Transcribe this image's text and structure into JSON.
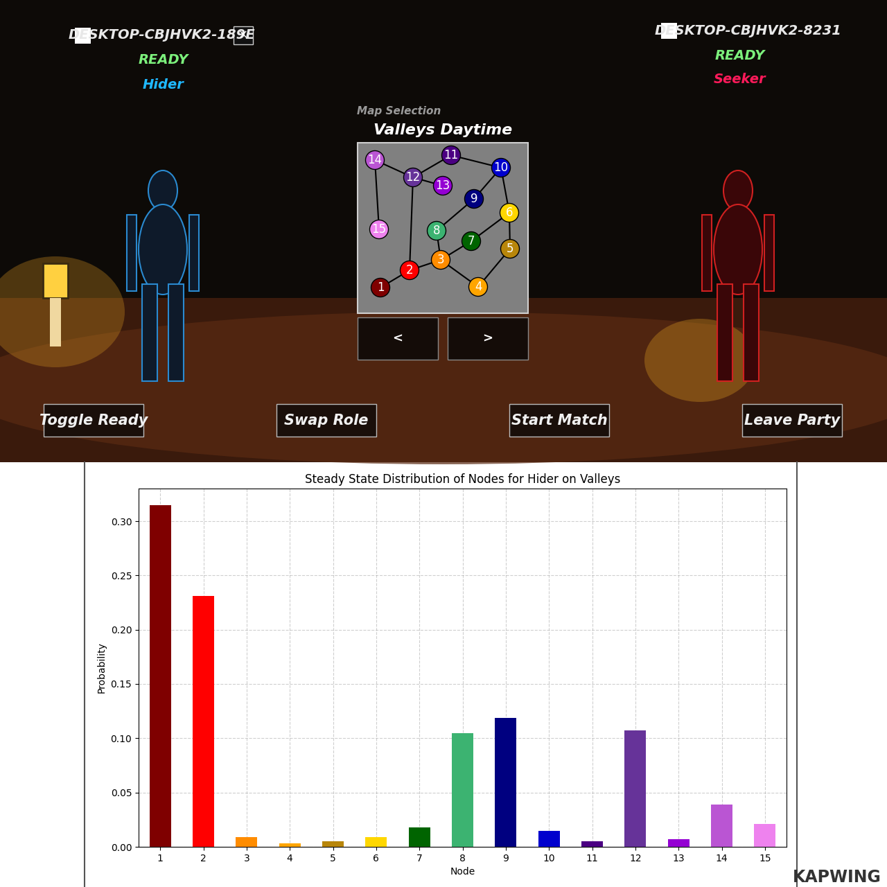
{
  "screenshot": {
    "players": [
      {
        "name": "DESKTOP-CBJHVK2-189E",
        "status": "READY",
        "role": "Hider",
        "close": "×"
      },
      {
        "name": "DESKTOP-CBJHVK2-8231",
        "status": "READY",
        "role": "Seeker"
      }
    ],
    "map_selection": {
      "label": "Map Selection",
      "map_name": "Valleys Daytime",
      "nodes": [
        {
          "label": "1",
          "color": "#7f0000"
        },
        {
          "label": "2",
          "color": "#ff0000"
        },
        {
          "label": "3",
          "color": "#ff8c00"
        },
        {
          "label": "4",
          "color": "#ffa500"
        },
        {
          "label": "5",
          "color": "#b8860b"
        },
        {
          "label": "6",
          "color": "#ffd700"
        },
        {
          "label": "7",
          "color": "#006400"
        },
        {
          "label": "8",
          "color": "#3cb371"
        },
        {
          "label": "9",
          "color": "#000080"
        },
        {
          "label": "10",
          "color": "#0000cd"
        },
        {
          "label": "11",
          "color": "#4b0082"
        },
        {
          "label": "12",
          "color": "#663399"
        },
        {
          "label": "13",
          "color": "#9400d3"
        },
        {
          "label": "14",
          "color": "#ba55d3"
        },
        {
          "label": "15",
          "color": "#ee82ee"
        }
      ],
      "edges": [
        [
          "14",
          "12"
        ],
        [
          "12",
          "11"
        ],
        [
          "11",
          "10"
        ],
        [
          "12",
          "13"
        ],
        [
          "14",
          "15"
        ],
        [
          "12",
          "2"
        ],
        [
          "2",
          "1"
        ],
        [
          "2",
          "3"
        ],
        [
          "3",
          "8"
        ],
        [
          "8",
          "9"
        ],
        [
          "9",
          "10"
        ],
        [
          "10",
          "6"
        ],
        [
          "6",
          "5"
        ],
        [
          "5",
          "4"
        ],
        [
          "4",
          "3"
        ],
        [
          "3",
          "7"
        ],
        [
          "7",
          "6"
        ]
      ],
      "nav_buttons": [
        "<",
        ">"
      ]
    },
    "buttons": [
      "Toggle Ready",
      "Swap Role",
      "Start Match",
      "Leave Party"
    ],
    "watermark": "KAPWING"
  },
  "chart_data": {
    "type": "bar",
    "title": "Steady State Distribution of Nodes for Hider on Valleys",
    "x_label": "Node",
    "y_label": "Probability",
    "categories": [
      "1",
      "2",
      "3",
      "4",
      "5",
      "6",
      "7",
      "8",
      "9",
      "10",
      "11",
      "12",
      "13",
      "14",
      "15"
    ],
    "values": [
      0.315,
      0.231,
      0.009,
      0.003,
      0.005,
      0.009,
      0.018,
      0.105,
      0.119,
      0.015,
      0.005,
      0.107,
      0.007,
      0.039,
      0.021
    ],
    "colors": [
      "#7f0000",
      "#ff0000",
      "#ff8c00",
      "#ffa500",
      "#b8860b",
      "#ffd700",
      "#006400",
      "#3cb371",
      "#000080",
      "#0000cd",
      "#4b0082",
      "#663399",
      "#9400d3",
      "#ba55d3",
      "#ee82ee"
    ],
    "ylim": [
      0,
      0.33
    ],
    "yticks": [
      {
        "value": 0,
        "label": "0.00"
      },
      {
        "value": 0.05,
        "label": "0.05"
      },
      {
        "value": 0.1,
        "label": "0.10"
      },
      {
        "value": 0.15,
        "label": "0.15"
      },
      {
        "value": 0.2,
        "label": "0.20"
      },
      {
        "value": 0.25,
        "label": "0.25"
      },
      {
        "value": 0.3,
        "label": "0.30"
      }
    ],
    "grid": true
  }
}
